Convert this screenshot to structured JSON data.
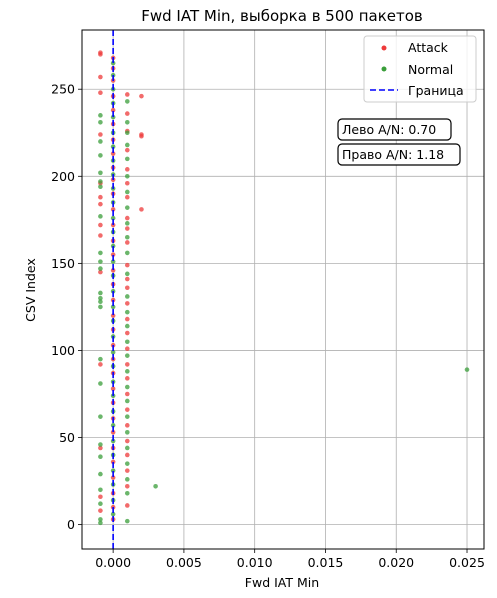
{
  "chart_data": {
    "type": "scatter",
    "title": "Fwd IAT Min, выборка в 500 пакетов",
    "xlabel": "Fwd IAT Min",
    "ylabel": "CSV Index",
    "xlim": [
      -0.0022,
      0.0262
    ],
    "ylim": [
      -14,
      284
    ],
    "xticks": [
      0.0,
      0.005,
      0.01,
      0.015,
      0.02,
      0.025
    ],
    "xtick_labels": [
      "0.000",
      "0.005",
      "0.010",
      "0.015",
      "0.020",
      "0.025"
    ],
    "yticks": [
      0,
      50,
      100,
      150,
      200,
      250
    ],
    "ytick_labels": [
      "0",
      "50",
      "100",
      "150",
      "200",
      "250"
    ],
    "grid": true,
    "legend_position": "top-right",
    "boundary": {
      "name": "Граница",
      "x": 0.0,
      "color": "#0000ff",
      "style": "dashed"
    },
    "annotations": [
      "Лево A/N: 0.70",
      "Право A/N: 1.18"
    ],
    "series": [
      {
        "name": "Attack",
        "color": "#ee3a3a",
        "points": [
          [
            -0.0009,
            271
          ],
          [
            -0.0009,
            270
          ],
          [
            -0.0009,
            257
          ],
          [
            -0.0009,
            248
          ],
          [
            -0.0009,
            224
          ],
          [
            -0.0009,
            196
          ],
          [
            -0.0009,
            188
          ],
          [
            -0.0009,
            184
          ],
          [
            -0.0009,
            172
          ],
          [
            -0.0009,
            166
          ],
          [
            -0.0009,
            145
          ],
          [
            -0.0009,
            92
          ],
          [
            -0.0009,
            44
          ],
          [
            -0.0009,
            16
          ],
          [
            -0.0009,
            8
          ],
          [
            0.0,
            268
          ],
          [
            0.0,
            262
          ],
          [
            0.0,
            255
          ],
          [
            0.0,
            246
          ],
          [
            0.0,
            238
          ],
          [
            0.0,
            230
          ],
          [
            0.0,
            221
          ],
          [
            0.0,
            213
          ],
          [
            0.0,
            205
          ],
          [
            0.0,
            198
          ],
          [
            0.0,
            190
          ],
          [
            0.0,
            181
          ],
          [
            0.0,
            172
          ],
          [
            0.0,
            163
          ],
          [
            0.0,
            155
          ],
          [
            0.0,
            146
          ],
          [
            0.0,
            138
          ],
          [
            0.0,
            129
          ],
          [
            0.0,
            120
          ],
          [
            0.0,
            112
          ],
          [
            0.0,
            103
          ],
          [
            0.0,
            95
          ],
          [
            0.0,
            87
          ],
          [
            0.0,
            78
          ],
          [
            0.0,
            70
          ],
          [
            0.0,
            61
          ],
          [
            0.0,
            53
          ],
          [
            0.0,
            44
          ],
          [
            0.0,
            36
          ],
          [
            0.0,
            27
          ],
          [
            0.0,
            18
          ],
          [
            0.0,
            10
          ],
          [
            0.0,
            3
          ],
          [
            0.001,
            247
          ],
          [
            0.001,
            236
          ],
          [
            0.001,
            226
          ],
          [
            0.001,
            215
          ],
          [
            0.001,
            204
          ],
          [
            0.001,
            196
          ],
          [
            0.001,
            188
          ],
          [
            0.001,
            176
          ],
          [
            0.001,
            170
          ],
          [
            0.001,
            162
          ],
          [
            0.001,
            149
          ],
          [
            0.001,
            141
          ],
          [
            0.001,
            136
          ],
          [
            0.001,
            127
          ],
          [
            0.001,
            118
          ],
          [
            0.001,
            110
          ],
          [
            0.001,
            101
          ],
          [
            0.001,
            92
          ],
          [
            0.001,
            84
          ],
          [
            0.001,
            75
          ],
          [
            0.001,
            66
          ],
          [
            0.001,
            57
          ],
          [
            0.001,
            48
          ],
          [
            0.001,
            40
          ],
          [
            0.001,
            31
          ],
          [
            0.001,
            22
          ],
          [
            0.001,
            11
          ],
          [
            0.002,
            246
          ],
          [
            0.002,
            224
          ],
          [
            0.002,
            223
          ],
          [
            0.002,
            181
          ]
        ]
      },
      {
        "name": "Normal",
        "color": "#3a9e3a",
        "points": [
          [
            -0.0009,
            235
          ],
          [
            -0.0009,
            231
          ],
          [
            -0.0009,
            220
          ],
          [
            -0.0009,
            212
          ],
          [
            -0.0009,
            202
          ],
          [
            -0.0009,
            197
          ],
          [
            -0.0009,
            194
          ],
          [
            -0.0009,
            177
          ],
          [
            -0.0009,
            156
          ],
          [
            -0.0009,
            151
          ],
          [
            -0.0009,
            147
          ],
          [
            -0.0009,
            133
          ],
          [
            -0.0009,
            130
          ],
          [
            -0.0009,
            128
          ],
          [
            -0.0009,
            125
          ],
          [
            -0.0009,
            95
          ],
          [
            -0.0009,
            81
          ],
          [
            -0.0009,
            62
          ],
          [
            -0.0009,
            46
          ],
          [
            -0.0009,
            39
          ],
          [
            -0.0009,
            29
          ],
          [
            -0.0009,
            20
          ],
          [
            -0.0009,
            12
          ],
          [
            -0.0009,
            3
          ],
          [
            -0.0009,
            1
          ],
          [
            0.0,
            265
          ],
          [
            0.0,
            258
          ],
          [
            0.0,
            250
          ],
          [
            0.0,
            242
          ],
          [
            0.0,
            234
          ],
          [
            0.0,
            225
          ],
          [
            0.0,
            217
          ],
          [
            0.0,
            209
          ],
          [
            0.0,
            201
          ],
          [
            0.0,
            193
          ],
          [
            0.0,
            185
          ],
          [
            0.0,
            176
          ],
          [
            0.0,
            168
          ],
          [
            0.0,
            160
          ],
          [
            0.0,
            151
          ],
          [
            0.0,
            143
          ],
          [
            0.0,
            134
          ],
          [
            0.0,
            125
          ],
          [
            0.0,
            117
          ],
          [
            0.0,
            108
          ],
          [
            0.0,
            99
          ],
          [
            0.0,
            91
          ],
          [
            0.0,
            82
          ],
          [
            0.0,
            74
          ],
          [
            0.0,
            65
          ],
          [
            0.0,
            57
          ],
          [
            0.0,
            48
          ],
          [
            0.0,
            40
          ],
          [
            0.0,
            31
          ],
          [
            0.0,
            23
          ],
          [
            0.0,
            14
          ],
          [
            0.0,
            6
          ],
          [
            0.001,
            243
          ],
          [
            0.001,
            231
          ],
          [
            0.001,
            225
          ],
          [
            0.001,
            218
          ],
          [
            0.001,
            210
          ],
          [
            0.001,
            200
          ],
          [
            0.001,
            191
          ],
          [
            0.001,
            182
          ],
          [
            0.001,
            173
          ],
          [
            0.001,
            165
          ],
          [
            0.001,
            156
          ],
          [
            0.001,
            144
          ],
          [
            0.001,
            131
          ],
          [
            0.001,
            122
          ],
          [
            0.001,
            114
          ],
          [
            0.001,
            105
          ],
          [
            0.001,
            97
          ],
          [
            0.001,
            88
          ],
          [
            0.001,
            79
          ],
          [
            0.001,
            71
          ],
          [
            0.001,
            62
          ],
          [
            0.001,
            53
          ],
          [
            0.001,
            44
          ],
          [
            0.001,
            35
          ],
          [
            0.001,
            26
          ],
          [
            0.001,
            18
          ],
          [
            0.001,
            2
          ],
          [
            0.003,
            22
          ],
          [
            0.025,
            89
          ]
        ]
      }
    ]
  }
}
